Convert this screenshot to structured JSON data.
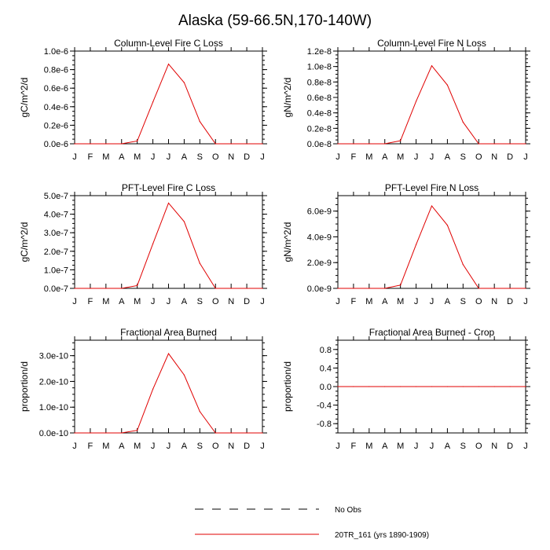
{
  "figure": {
    "title": "Alaska (59-66.5N,170-140W)",
    "series_color": "#e00000",
    "axis_color": "#000000"
  },
  "legend": {
    "items": [
      {
        "label": "No Obs",
        "style": "dashed",
        "color": "#000000"
      },
      {
        "label": "20TR_161 (yrs 1890-1909)",
        "style": "solid",
        "color": "#e00000"
      }
    ]
  },
  "chart_data": [
    {
      "type": "line",
      "title": "Column-Level Fire C Loss",
      "xlabel": "",
      "ylabel": "gC/m^2/d",
      "categories": [
        "J",
        "F",
        "M",
        "A",
        "M",
        "J",
        "J",
        "A",
        "S",
        "O",
        "N",
        "D",
        "J"
      ],
      "ylim": [
        0,
        1e-06
      ],
      "yticks": [
        0,
        2e-07,
        4e-07,
        6e-07,
        8e-07,
        1e-06
      ],
      "ytick_labels": [
        "0.0e-6",
        "0.2e-6",
        "0.4e-6",
        "0.6e-6",
        "0.8e-6",
        "1.0e-6"
      ],
      "series": [
        {
          "name": "20TR_161 (yrs 1890-1909)",
          "values": [
            0,
            0,
            0,
            0,
            3e-08,
            4.5e-07,
            8.6e-07,
            6.6e-07,
            2.4e-07,
            0,
            0,
            0,
            0
          ]
        }
      ]
    },
    {
      "type": "line",
      "title": "Column-Level Fire N Loss",
      "xlabel": "",
      "ylabel": "gN/m^2/d",
      "categories": [
        "J",
        "F",
        "M",
        "A",
        "M",
        "J",
        "J",
        "A",
        "S",
        "O",
        "N",
        "D",
        "J"
      ],
      "ylim": [
        0,
        1.2e-08
      ],
      "yticks": [
        0,
        2e-09,
        4e-09,
        6e-09,
        8e-09,
        1e-08,
        1.2e-08
      ],
      "ytick_labels": [
        "0.0e-8",
        "0.2e-8",
        "0.4e-8",
        "0.6e-8",
        "0.8e-8",
        "1.0e-8",
        "1.2e-8"
      ],
      "series": [
        {
          "name": "20TR_161 (yrs 1890-1909)",
          "values": [
            0,
            0,
            0,
            0,
            4e-10,
            5.5e-09,
            1.01e-08,
            7.6e-09,
            2.8e-09,
            0,
            0,
            0,
            0
          ]
        }
      ]
    },
    {
      "type": "line",
      "title": "PFT-Level Fire C Loss",
      "xlabel": "",
      "ylabel": "gC/m^2/d",
      "categories": [
        "J",
        "F",
        "M",
        "A",
        "M",
        "J",
        "J",
        "A",
        "S",
        "O",
        "N",
        "D",
        "J"
      ],
      "ylim": [
        0,
        5e-07
      ],
      "yticks": [
        0,
        1e-07,
        2e-07,
        3e-07,
        4e-07,
        5e-07
      ],
      "ytick_labels": [
        "0.0e-7",
        "1.0e-7",
        "2.0e-7",
        "3.0e-7",
        "4.0e-7",
        "5.0e-7"
      ],
      "series": [
        {
          "name": "20TR_161 (yrs 1890-1909)",
          "values": [
            0,
            0,
            0,
            0,
            1.5e-08,
            2.4e-07,
            4.6e-07,
            3.6e-07,
            1.35e-07,
            0,
            0,
            0,
            0
          ]
        }
      ]
    },
    {
      "type": "line",
      "title": "PFT-Level Fire N Loss",
      "xlabel": "",
      "ylabel": "gN/m^2/d",
      "categories": [
        "J",
        "F",
        "M",
        "A",
        "M",
        "J",
        "J",
        "A",
        "S",
        "O",
        "N",
        "D",
        "J"
      ],
      "ylim": [
        0,
        7.2e-09
      ],
      "yticks": [
        0,
        2e-09,
        4e-09,
        6e-09
      ],
      "ytick_labels": [
        "0.0e-9",
        "2.0e-9",
        "4.0e-9",
        "6.0e-9"
      ],
      "series": [
        {
          "name": "20TR_161 (yrs 1890-1909)",
          "values": [
            0,
            0,
            0,
            0,
            2.5e-10,
            3.4e-09,
            6.4e-09,
            4.9e-09,
            1.85e-09,
            0,
            0,
            0,
            0
          ]
        }
      ]
    },
    {
      "type": "line",
      "title": "Fractional Area Burned",
      "xlabel": "",
      "ylabel": "proportion/d",
      "categories": [
        "J",
        "F",
        "M",
        "A",
        "M",
        "J",
        "J",
        "A",
        "S",
        "O",
        "N",
        "D",
        "J"
      ],
      "ylim": [
        0,
        3.6e-10
      ],
      "yticks": [
        0,
        1e-10,
        2e-10,
        3e-10
      ],
      "ytick_labels": [
        "0.0e-10",
        "1.0e-10",
        "2.0e-10",
        "3.0e-10"
      ],
      "series": [
        {
          "name": "20TR_161 (yrs 1890-1909)",
          "values": [
            0,
            0,
            0,
            0,
            1e-11,
            1.7e-10,
            3.08e-10,
            2.25e-10,
            8.3e-11,
            0,
            0,
            0,
            0
          ]
        }
      ]
    },
    {
      "type": "line",
      "title": "Fractional Area Burned - Crop",
      "xlabel": "",
      "ylabel": "proportion/d",
      "categories": [
        "J",
        "F",
        "M",
        "A",
        "M",
        "J",
        "J",
        "A",
        "S",
        "O",
        "N",
        "D",
        "J"
      ],
      "ylim": [
        -1.0,
        1.0
      ],
      "yticks": [
        -0.8,
        -0.4,
        0,
        0.4,
        0.8
      ],
      "ytick_labels": [
        "-0.8",
        "-0.4",
        "0.0",
        "0.4",
        "0.8"
      ],
      "series": [
        {
          "name": "20TR_161 (yrs 1890-1909)",
          "values": [
            0,
            0,
            0,
            0,
            0,
            0,
            0,
            0,
            0,
            0,
            0,
            0,
            0
          ]
        }
      ]
    }
  ]
}
